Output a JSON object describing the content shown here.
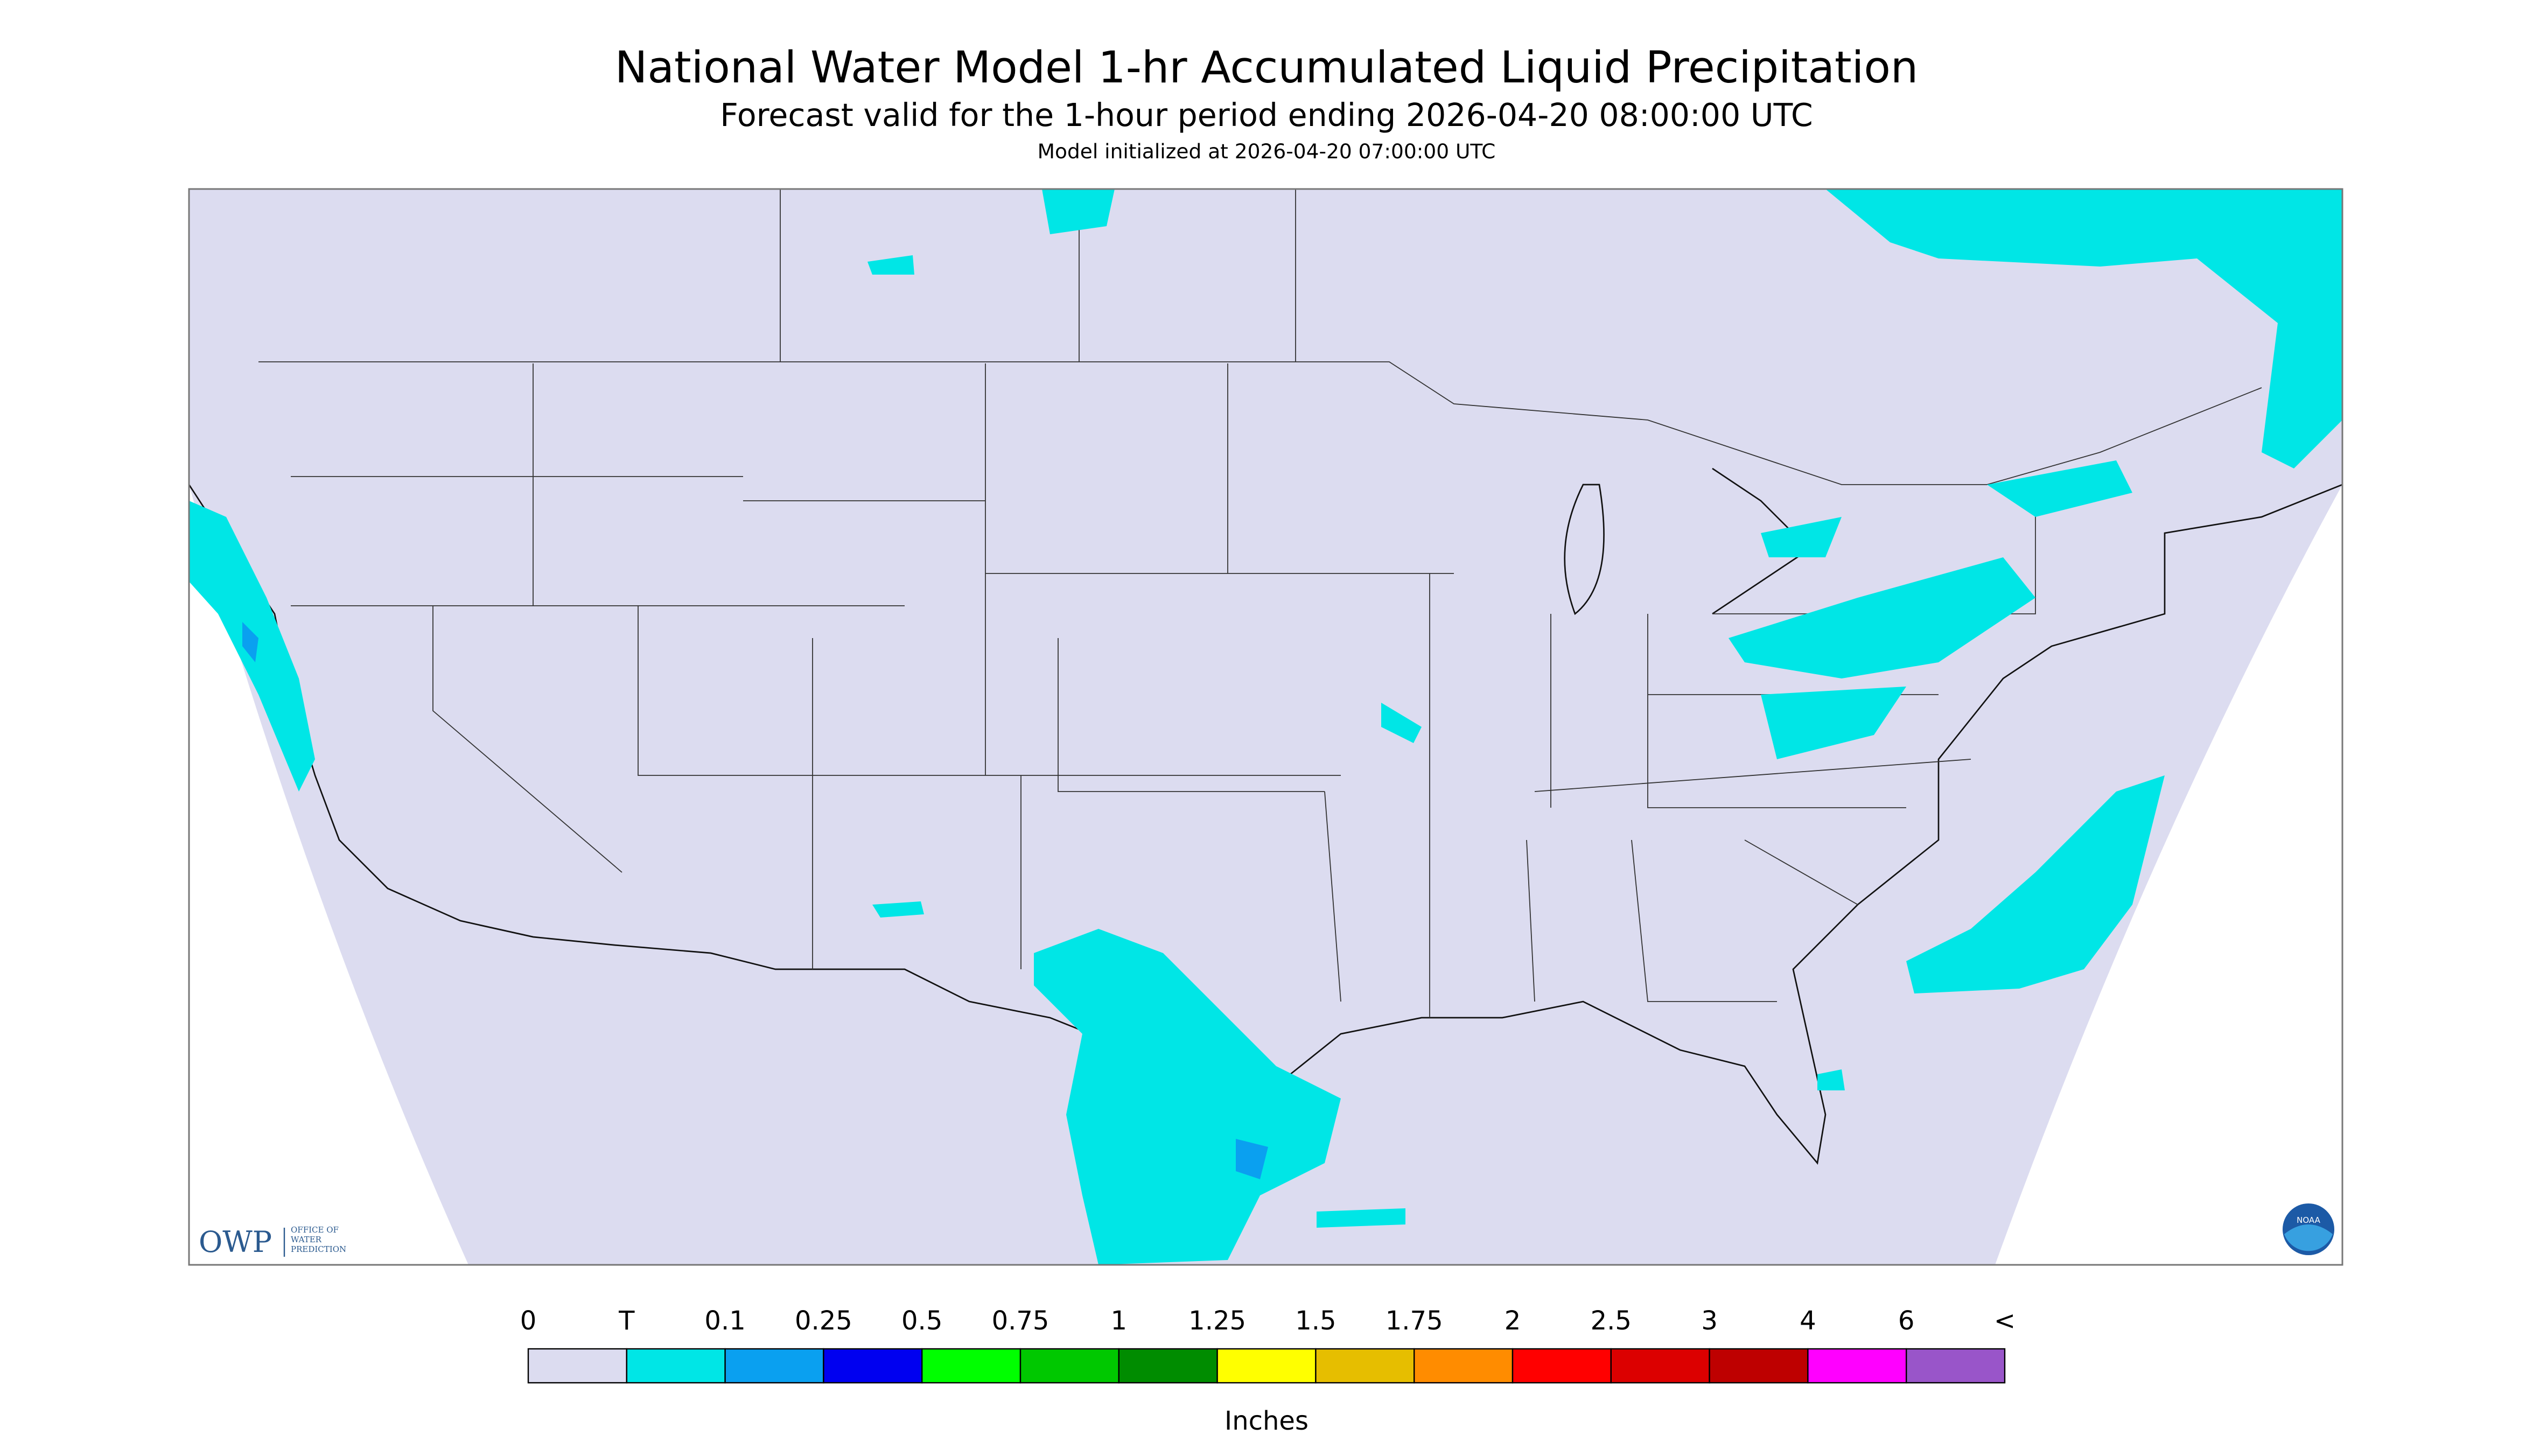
{
  "header": {
    "title": "National Water Model 1-hr Accumulated Liquid Precipitation",
    "subtitle": "Forecast valid for the 1-hour period ending 2026-04-20 08:00:00 UTC",
    "initialized": "Model initialized at 2026-04-20 07:00:00 UTC"
  },
  "logo": {
    "name": "OWP",
    "lines": [
      "OFFICE OF",
      "WATER",
      "PREDICTION"
    ],
    "badge": "NOAA"
  },
  "legend": {
    "labels": [
      "0",
      "T",
      "0.1",
      "0.25",
      "0.5",
      "0.75",
      "1",
      "1.25",
      "1.5",
      "1.75",
      "2",
      "2.5",
      "3",
      "4",
      "6",
      "<"
    ],
    "colors": [
      "#dcdcf0",
      "#00e6e6",
      "#0aa0f0",
      "#0000f0",
      "#00ff00",
      "#00c800",
      "#008c00",
      "#ffff00",
      "#e6be00",
      "#ff8c00",
      "#ff0000",
      "#dc0000",
      "#be0000",
      "#ff00ff",
      "#9955c9"
    ],
    "unit": "Inches"
  }
}
